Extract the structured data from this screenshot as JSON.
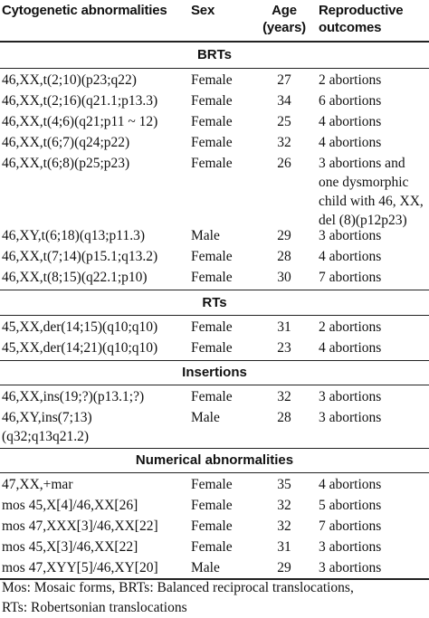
{
  "header": {
    "col1": "Cytogenetic abnormalities",
    "col2": "Sex",
    "col3_line1": "Age",
    "col3_line2": "(years)",
    "col4_line1": "Reproductive",
    "col4_line2": "outcomes"
  },
  "sections": [
    {
      "title": "BRTs",
      "rows": [
        {
          "abn": "46,XX,t(2;10)(p23;q22)",
          "sex": "Female",
          "age": "27",
          "outcome": "2 abortions"
        },
        {
          "abn": "46,XX,t(2;16)(q21.1;p13.3)",
          "sex": "Female",
          "age": "34",
          "outcome": "6 abortions"
        },
        {
          "abn": "46,XX,t(4;6)(q21;p11 ~ 12)",
          "sex": "Female",
          "age": "25",
          "outcome": "4 abortions"
        },
        {
          "abn": "46,XX,t(6;7)(q24;p22)",
          "sex": "Female",
          "age": "32",
          "outcome": "4 abortions"
        },
        {
          "abn": "46,XX,t(6;8)(p25;p23)",
          "sex": "Female",
          "age": "26",
          "outcome_lines": [
            "3 abortions and",
            "one dysmorphic",
            "child with 46, XX,",
            "del (8)(p12p23)"
          ]
        },
        {
          "abn": "46,XY,t(6;18)(q13;p11.3)",
          "sex": "Male",
          "age": "29",
          "outcome": "3 abortions"
        },
        {
          "abn": "46,XX,t(7;14)(p15.1;q13.2)",
          "sex": "Female",
          "age": "28",
          "outcome": "4 abortions"
        },
        {
          "abn": "46,XX,t(8;15)(q22.1;p10)",
          "sex": "Female",
          "age": "30",
          "outcome": "7 abortions"
        }
      ]
    },
    {
      "title": "RTs",
      "rows": [
        {
          "abn": "45,XX,der(14;15)(q10;q10)",
          "sex": "Female",
          "age": "31",
          "outcome": "2 abortions"
        },
        {
          "abn": "45,XX,der(14;21)(q10;q10)",
          "sex": "Female",
          "age": "23",
          "outcome": "4 abortions"
        }
      ]
    },
    {
      "title": "Insertions",
      "rows": [
        {
          "abn": "46,XX,ins(19;?)(p13.1;?)",
          "sex": "Female",
          "age": "32",
          "outcome": "3 abortions"
        },
        {
          "abn_lines": [
            "46,XY,ins(7;13)",
            "(q32;q13q21.2)"
          ],
          "sex": "Male",
          "age": "28",
          "outcome": "3 abortions"
        }
      ]
    },
    {
      "title": "Numerical abnormalities",
      "rows": [
        {
          "abn": "47,XX,+mar",
          "sex": "Female",
          "age": "35",
          "outcome": "4 abortions"
        },
        {
          "abn": "mos 45,X[4]/46,XX[26]",
          "sex": "Female",
          "age": "32",
          "outcome": "5 abortions"
        },
        {
          "abn": "mos 47,XXX[3]/46,XX[22]",
          "sex": "Female",
          "age": "32",
          "outcome": "7 abortions"
        },
        {
          "abn": "mos 45,X[3]/46,XX[22]",
          "sex": "Female",
          "age": "31",
          "outcome": "3 abortions"
        },
        {
          "abn": "mos 47,XYY[5]/46,XY[20]",
          "sex": "Male",
          "age": "29",
          "outcome": "3 abortions"
        }
      ]
    }
  ],
  "footnote": {
    "line1": "Mos: Mosaic forms, BRTs: Balanced reciprocal translocations,",
    "line2": "RTs: Robertsonian translocations"
  }
}
